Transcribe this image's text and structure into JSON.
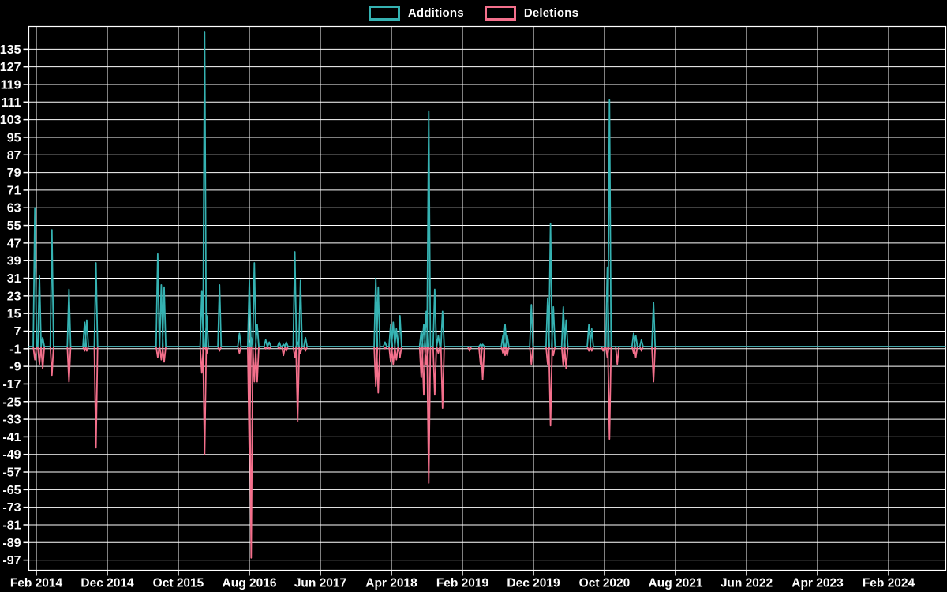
{
  "legend": {
    "items": [
      {
        "label": "Additions",
        "color": "#35b2b2"
      },
      {
        "label": "Deletions",
        "color": "#f4708c"
      }
    ]
  },
  "colors": {
    "background": "#000000",
    "gridline": "#ffffff",
    "axis_text": "#ffffff",
    "additions_line": "#35b2b2",
    "deletions_line": "#f4708c"
  },
  "axes": {
    "y_tick_labels": [
      135,
      127,
      119,
      111,
      103,
      95,
      87,
      79,
      71,
      63,
      55,
      47,
      39,
      31,
      23,
      15,
      7,
      -1,
      -9,
      -17,
      -25,
      -33,
      -41,
      -49,
      -57,
      -65,
      -73,
      -81,
      -89,
      -97
    ],
    "x_tick_labels": [
      "Feb 2014",
      "Dec 2014",
      "Oct 2015",
      "Aug 2016",
      "Jun 2017",
      "Apr 2018",
      "Feb 2019",
      "Dec 2019",
      "Oct 2020",
      "Aug 2021",
      "Jun 2022",
      "Apr 2023",
      "Feb 2024"
    ]
  },
  "chart_data": {
    "type": "line",
    "title": "",
    "xlabel": "",
    "ylabel": "",
    "x_range": "weekly data, Jan 2014 - Oct 2024",
    "ylim": [
      -101,
      145
    ],
    "grid": true,
    "legend_position": "top-center",
    "baseline_value": 0,
    "series_names": [
      "Additions",
      "Deletions"
    ],
    "note": "m = months after Feb 2014; weeks not listed have additions 0 and deletions 0; both lines rest on the zero baseline across the full width",
    "points": [
      {
        "date": "2014-01",
        "m": -0.2,
        "additions": 63,
        "deletions": -6
      },
      {
        "date": "2014-02",
        "m": 0.45,
        "additions": 32,
        "deletions": -8
      },
      {
        "date": "2014-03",
        "m": 0.9,
        "additions": 4,
        "deletions": -10
      },
      {
        "date": "2014-04",
        "m": 2.2,
        "additions": 53,
        "deletions": -13
      },
      {
        "date": "2014-06",
        "m": 4.6,
        "additions": 26,
        "deletions": -16
      },
      {
        "date": "2014-08",
        "m": 6.8,
        "additions": 11,
        "deletions": -2
      },
      {
        "date": "2014-09",
        "m": 7.1,
        "additions": 12,
        "deletions": -2
      },
      {
        "date": "2014-10",
        "m": 8.4,
        "additions": 38,
        "deletions": -46
      },
      {
        "date": "2015-07",
        "m": 17.1,
        "additions": 42,
        "deletions": -5
      },
      {
        "date": "2015-07",
        "m": 17.6,
        "additions": 28,
        "deletions": -6
      },
      {
        "date": "2015-08",
        "m": 18.0,
        "additions": 27,
        "deletions": -7
      },
      {
        "date": "2016-01",
        "m": 23.3,
        "additions": 25,
        "deletions": -12
      },
      {
        "date": "2016-01",
        "m": 23.7,
        "additions": 143,
        "deletions": -49
      },
      {
        "date": "2016-02",
        "m": 24.0,
        "additions": 14,
        "deletions": -3
      },
      {
        "date": "2016-03",
        "m": 25.8,
        "additions": 28,
        "deletions": -2
      },
      {
        "date": "2016-06",
        "m": 28.6,
        "additions": 6,
        "deletions": -3
      },
      {
        "date": "2016-08",
        "m": 30.0,
        "additions": 30,
        "deletions": -49
      },
      {
        "date": "2016-08",
        "m": 30.25,
        "additions": 4,
        "deletions": -96
      },
      {
        "date": "2016-08",
        "m": 30.7,
        "additions": 38,
        "deletions": -16
      },
      {
        "date": "2016-09",
        "m": 31.1,
        "additions": 10,
        "deletions": -16
      },
      {
        "date": "2016-10",
        "m": 32.3,
        "additions": 3,
        "deletions": -1
      },
      {
        "date": "2016-10",
        "m": 32.8,
        "additions": 2,
        "deletions": -1
      },
      {
        "date": "2016-12",
        "m": 34.2,
        "additions": 2,
        "deletions": -1
      },
      {
        "date": "2016-12",
        "m": 34.8,
        "additions": 1,
        "deletions": -4
      },
      {
        "date": "2017-01",
        "m": 35.2,
        "additions": 2,
        "deletions": -2
      },
      {
        "date": "2017-02",
        "m": 36.4,
        "additions": 43,
        "deletions": -5
      },
      {
        "date": "2017-02",
        "m": 36.8,
        "additions": 2,
        "deletions": -34
      },
      {
        "date": "2017-03",
        "m": 37.2,
        "additions": 30,
        "deletions": -3
      },
      {
        "date": "2017-03",
        "m": 37.9,
        "additions": 4,
        "deletions": -2
      },
      {
        "date": "2018-01",
        "m": 47.8,
        "additions": 31,
        "deletions": -18
      },
      {
        "date": "2018-02",
        "m": 48.15,
        "additions": 27,
        "deletions": -21
      },
      {
        "date": "2018-03",
        "m": 49.1,
        "additions": 2,
        "deletions": -1
      },
      {
        "date": "2018-03",
        "m": 49.9,
        "additions": 10,
        "deletions": -7
      },
      {
        "date": "2018-04",
        "m": 50.25,
        "additions": 11,
        "deletions": -8
      },
      {
        "date": "2018-04",
        "m": 50.7,
        "additions": 8,
        "deletions": -6
      },
      {
        "date": "2018-05",
        "m": 51.2,
        "additions": 14,
        "deletions": -5
      },
      {
        "date": "2018-08",
        "m": 54.2,
        "additions": 7,
        "deletions": -14
      },
      {
        "date": "2018-08",
        "m": 54.55,
        "additions": 10,
        "deletions": -22
      },
      {
        "date": "2018-08",
        "m": 54.9,
        "additions": 16,
        "deletions": -8
      },
      {
        "date": "2018-09",
        "m": 55.25,
        "additions": 107,
        "deletions": -62
      },
      {
        "date": "2018-10",
        "m": 56.1,
        "additions": 26,
        "deletions": -22
      },
      {
        "date": "2018-10",
        "m": 56.6,
        "additions": 5,
        "deletions": -3
      },
      {
        "date": "2018-11",
        "m": 57.2,
        "additions": 16,
        "deletions": -28
      },
      {
        "date": "2019-03",
        "m": 61.0,
        "additions": 0,
        "deletions": -2
      },
      {
        "date": "2019-04",
        "m": 62.55,
        "additions": 1,
        "deletions": -8
      },
      {
        "date": "2019-04",
        "m": 62.85,
        "additions": 1,
        "deletions": -15
      },
      {
        "date": "2019-07",
        "m": 65.7,
        "additions": 5,
        "deletions": -3
      },
      {
        "date": "2019-08",
        "m": 66.0,
        "additions": 10,
        "deletions": -4
      },
      {
        "date": "2019-08",
        "m": 66.3,
        "additions": 5,
        "deletions": -4
      },
      {
        "date": "2019-11",
        "m": 69.7,
        "additions": 19,
        "deletions": -8
      },
      {
        "date": "2020-02",
        "m": 72.0,
        "additions": 22,
        "deletions": -8
      },
      {
        "date": "2020-02",
        "m": 72.4,
        "additions": 56,
        "deletions": -36
      },
      {
        "date": "2020-02",
        "m": 72.8,
        "additions": 18,
        "deletions": -4
      },
      {
        "date": "2020-04",
        "m": 74.2,
        "additions": 18,
        "deletions": -9
      },
      {
        "date": "2020-04",
        "m": 74.6,
        "additions": 12,
        "deletions": -10
      },
      {
        "date": "2020-07",
        "m": 77.8,
        "additions": 10,
        "deletions": -2
      },
      {
        "date": "2020-08",
        "m": 78.2,
        "additions": 8,
        "deletions": -2
      },
      {
        "date": "2020-09",
        "m": 79.8,
        "additions": 0,
        "deletions": -2
      },
      {
        "date": "2020-10",
        "m": 80.4,
        "additions": 36,
        "deletions": -5
      },
      {
        "date": "2020-10",
        "m": 80.7,
        "additions": 112,
        "deletions": -42
      },
      {
        "date": "2020-11",
        "m": 81.8,
        "additions": 0,
        "deletions": -8
      },
      {
        "date": "2021-02",
        "m": 84.1,
        "additions": 6,
        "deletions": -3
      },
      {
        "date": "2021-02",
        "m": 84.4,
        "additions": 5,
        "deletions": -5
      },
      {
        "date": "2021-03",
        "m": 85.2,
        "additions": 3,
        "deletions": -2
      },
      {
        "date": "2021-04",
        "m": 86.9,
        "additions": 20,
        "deletions": -16
      }
    ]
  }
}
